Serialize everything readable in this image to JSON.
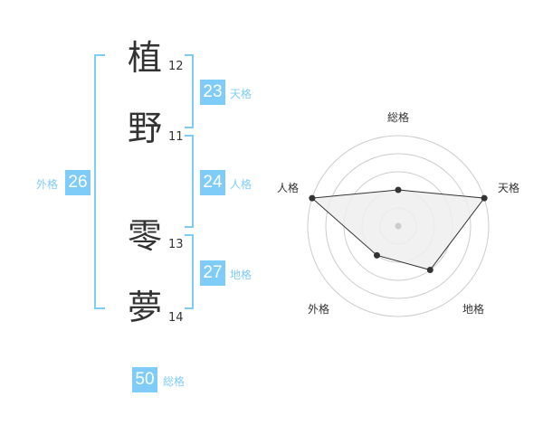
{
  "name": {
    "chars": [
      {
        "char": "植",
        "strokes": "12"
      },
      {
        "char": "野",
        "strokes": "11"
      },
      {
        "char": "零",
        "strokes": "13"
      },
      {
        "char": "夢",
        "strokes": "14"
      }
    ]
  },
  "fortunes": {
    "tenkaku": {
      "label": "天格",
      "value": "23"
    },
    "jinkaku": {
      "label": "人格",
      "value": "24"
    },
    "chikaku": {
      "label": "地格",
      "value": "27"
    },
    "gaikaku": {
      "label": "外格",
      "value": "26"
    },
    "soukaku": {
      "label": "総格",
      "value": "50"
    }
  },
  "colors": {
    "accent": "#80ccf8",
    "fill": "#eeeeee",
    "line": "#333333"
  },
  "chart_data": {
    "type": "radar",
    "axes": [
      "総格",
      "天格",
      "地格",
      "外格",
      "人格"
    ],
    "values": [
      2,
      5,
      3,
      2,
      5
    ],
    "range": [
      0,
      5
    ],
    "rings": 5
  }
}
